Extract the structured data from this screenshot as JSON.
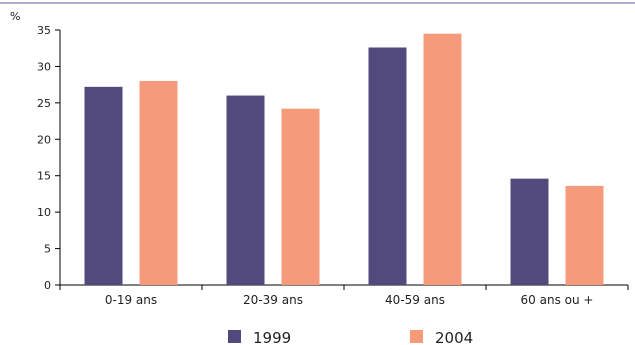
{
  "colors": {
    "series_1999": "#524a7c",
    "series_2004": "#f59b7c",
    "top_rule": "#b4acd0",
    "axis": "#000000"
  },
  "chart_data": {
    "type": "bar",
    "unit_label": "%",
    "categories": [
      "0-19 ans",
      "20-39 ans",
      "40-59 ans",
      "60 ans ou +"
    ],
    "series": [
      {
        "name": "1999",
        "values": [
          27.2,
          26.0,
          32.6,
          14.6
        ]
      },
      {
        "name": "2004",
        "values": [
          28.0,
          24.2,
          34.5,
          13.6
        ]
      }
    ],
    "ylim": [
      0,
      35
    ],
    "yticks": [
      0,
      5,
      10,
      15,
      20,
      25,
      30,
      35
    ],
    "grid": false,
    "legend_position": "bottom"
  }
}
